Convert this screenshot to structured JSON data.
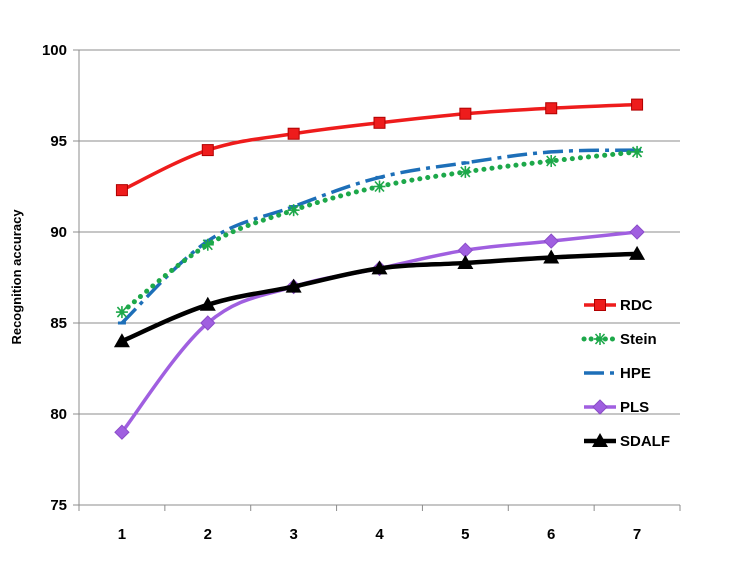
{
  "chart_data": {
    "type": "line",
    "ylabel": "Recognition accuracy",
    "xlabel": "",
    "categories": [
      "1",
      "2",
      "3",
      "4",
      "5",
      "6",
      "7"
    ],
    "ylim": [
      75,
      100
    ],
    "yticks": [
      75,
      80,
      85,
      90,
      95,
      100
    ],
    "grid": "horizontal",
    "legend_position": "right",
    "series": [
      {
        "name": "RDC",
        "color": "#ee1c1c",
        "marker": "square",
        "line": "solid",
        "values": [
          92.3,
          94.5,
          95.4,
          96.0,
          96.5,
          96.8,
          97.0
        ]
      },
      {
        "name": "Stein",
        "color": "#1da84a",
        "marker": "asterisk",
        "line": "dotted",
        "values": [
          85.6,
          89.3,
          91.2,
          92.5,
          93.3,
          93.9,
          94.4
        ]
      },
      {
        "name": "HPE",
        "color": "#1d6fb8",
        "marker": "dash",
        "line": "dashdot",
        "values": [
          85.0,
          89.5,
          91.4,
          93.0,
          93.8,
          94.4,
          94.5
        ]
      },
      {
        "name": "PLS",
        "color": "#a05fe0",
        "marker": "diamond",
        "line": "solid",
        "values": [
          79.0,
          85.0,
          87.0,
          88.0,
          89.0,
          89.5,
          90.0
        ]
      },
      {
        "name": "SDALF",
        "color": "#000000",
        "marker": "triangle",
        "line": "solid",
        "values": [
          84.0,
          86.0,
          87.0,
          88.0,
          88.3,
          88.6,
          88.8
        ]
      }
    ]
  }
}
